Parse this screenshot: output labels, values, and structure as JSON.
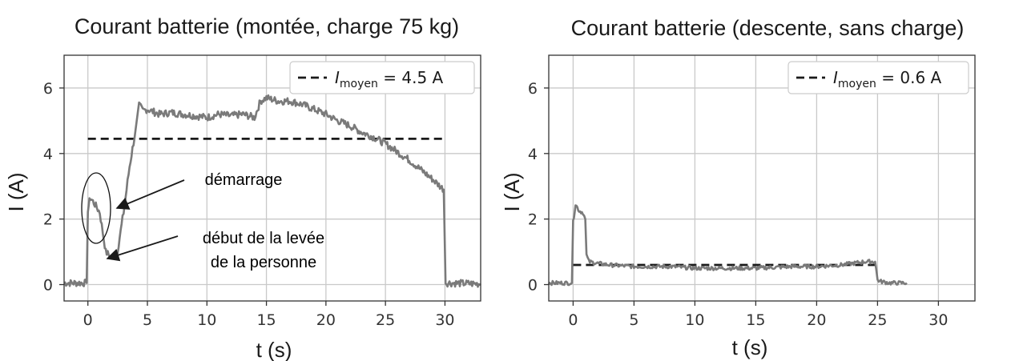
{
  "chart_data": [
    {
      "type": "line",
      "title": "Courant batterie (montée, charge 75 kg)",
      "xlabel": "t (s)",
      "ylabel": "I (A)",
      "xlim": [
        -2,
        33
      ],
      "ylim": [
        -0.5,
        7
      ],
      "xticks": [
        0,
        5,
        10,
        15,
        20,
        25,
        30
      ],
      "yticks": [
        0,
        2,
        4,
        6
      ],
      "grid": true,
      "legend_position": "top-right",
      "legend": {
        "italic": "I",
        "subscript": "moyen",
        "rest": " = 4.5 A"
      },
      "mean": {
        "value": 4.45,
        "x_start": 0,
        "x_end": 30
      },
      "series": [
        {
          "x": [
            -2,
            -0.1,
            0,
            0.2,
            0.5,
            1,
            1.5,
            2,
            2.5,
            3,
            3.5,
            4,
            4.3,
            4.6,
            5,
            6,
            7,
            8,
            9,
            10,
            11,
            12,
            13,
            14,
            14.5,
            15,
            16,
            17,
            18,
            19,
            20,
            21,
            22,
            23,
            24,
            25,
            26,
            27,
            28,
            29,
            29.9,
            30.05,
            30.3,
            33
          ],
          "y": [
            0.05,
            0.05,
            2.3,
            2.65,
            2.5,
            2.2,
            1.0,
            0.82,
            1.05,
            2.2,
            3.6,
            4.7,
            5.5,
            5.3,
            5.35,
            5.2,
            5.25,
            5.2,
            5.15,
            5.1,
            5.2,
            5.15,
            5.2,
            5.1,
            5.6,
            5.7,
            5.6,
            5.6,
            5.5,
            5.35,
            5.2,
            5.0,
            4.85,
            4.65,
            4.5,
            4.3,
            4.05,
            3.8,
            3.5,
            3.2,
            2.9,
            0.05,
            0.05,
            0.02
          ]
        }
      ],
      "annotations": [
        "démarrage",
        "début de la levée",
        "de la personne"
      ]
    },
    {
      "type": "line",
      "title": "Courant batterie (descente, sans charge)",
      "xlabel": "t (s)",
      "ylabel": "I (A)",
      "xlim": [
        -2,
        33
      ],
      "ylim": [
        -0.5,
        7
      ],
      "xticks": [
        0,
        5,
        10,
        15,
        20,
        25,
        30
      ],
      "yticks": [
        0,
        2,
        4,
        6
      ],
      "grid": true,
      "legend_position": "top-right",
      "legend": {
        "italic": "I",
        "subscript": "moyen",
        "rest": " = 0.6 A"
      },
      "mean": {
        "value": 0.6,
        "x_start": 0,
        "x_end": 25
      },
      "series": [
        {
          "x": [
            -2,
            -0.1,
            0,
            0.2,
            0.5,
            0.8,
            1.0,
            1.1,
            1.3,
            2,
            3,
            5,
            8,
            10,
            12,
            15,
            18,
            20,
            22,
            24,
            24.8,
            25.0,
            25.2,
            26,
            27.4
          ],
          "y": [
            0.05,
            0.05,
            1.9,
            2.45,
            2.25,
            2.2,
            2.0,
            0.9,
            0.7,
            0.65,
            0.6,
            0.55,
            0.55,
            0.5,
            0.5,
            0.5,
            0.55,
            0.55,
            0.6,
            0.7,
            0.7,
            0.15,
            0.1,
            0.05,
            0.05
          ]
        }
      ],
      "annotations": []
    }
  ]
}
